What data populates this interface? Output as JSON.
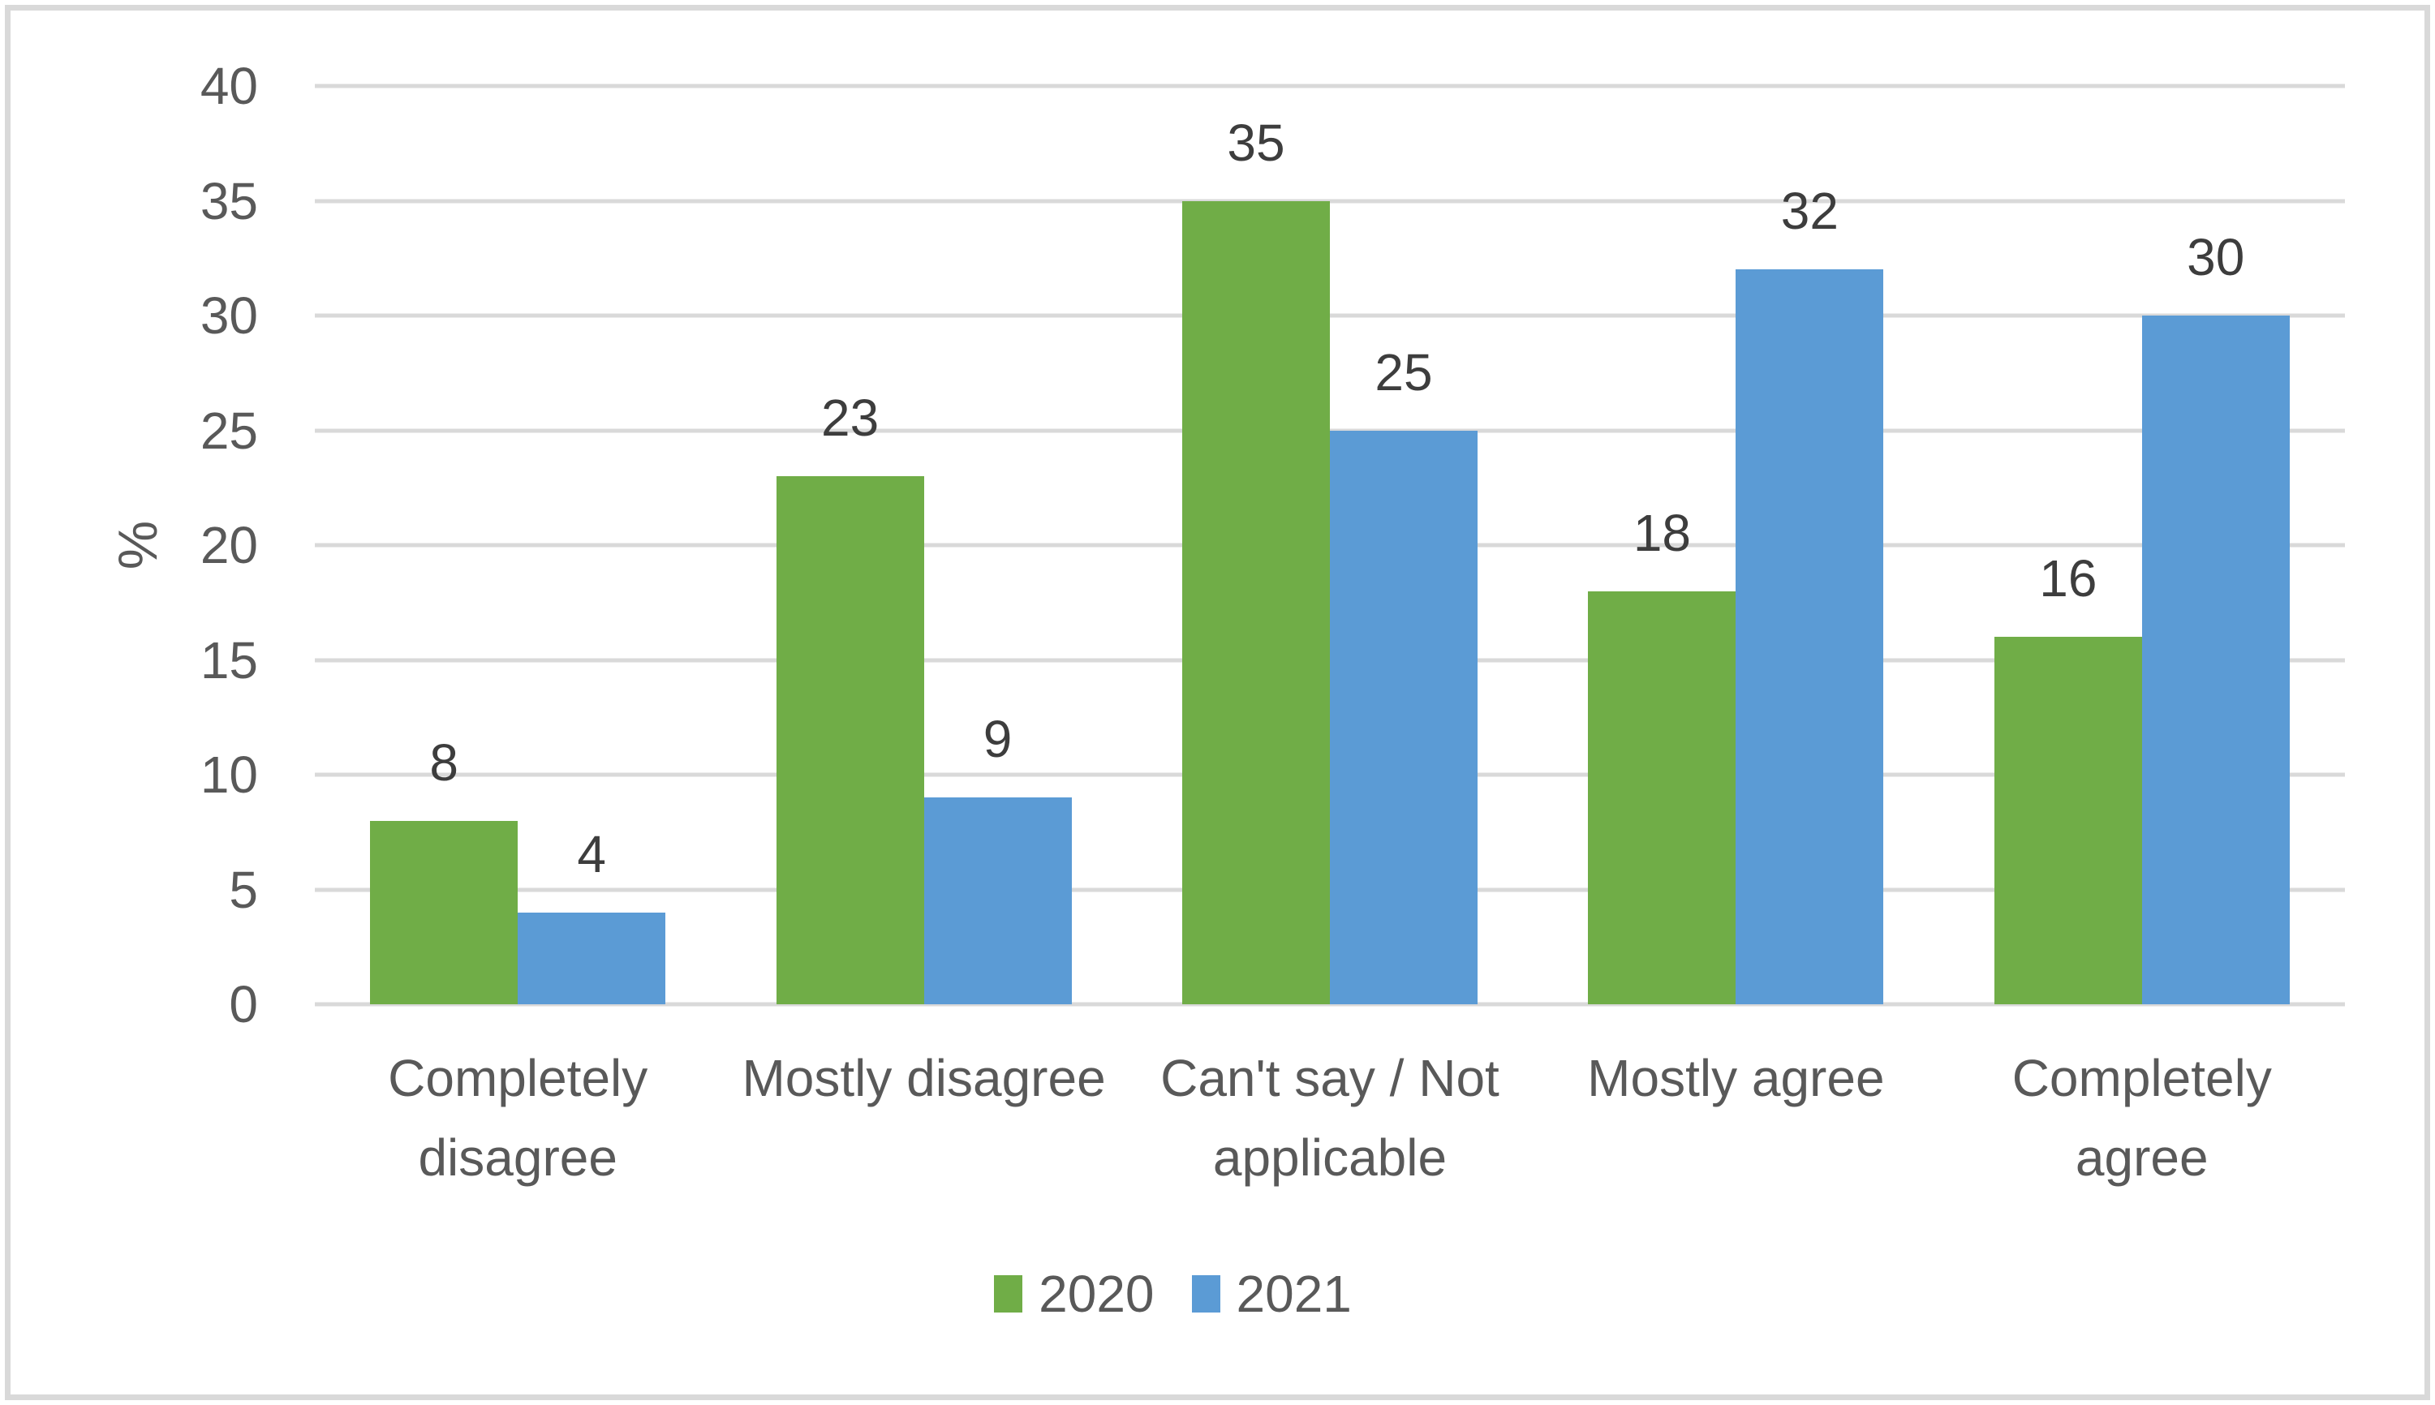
{
  "chart_data": {
    "type": "bar",
    "title": "",
    "categories": [
      "Completely disagree",
      "Mostly disagree",
      "Can't say / Not applicable",
      "Mostly agree",
      "Completely agree"
    ],
    "category_lines": [
      [
        "Completely",
        "disagree"
      ],
      [
        "Mostly disagree"
      ],
      [
        "Can't say / Not",
        "applicable"
      ],
      [
        "Mostly agree"
      ],
      [
        "Completely",
        "agree"
      ]
    ],
    "series": [
      {
        "name": "2020",
        "color": "#70AD47",
        "values": [
          8,
          23,
          35,
          18,
          16
        ]
      },
      {
        "name": "2021",
        "color": "#5B9BD5",
        "values": [
          4,
          9,
          25,
          32,
          30
        ]
      }
    ],
    "xlabel": "",
    "ylabel": "%",
    "ylim": [
      0,
      40
    ],
    "yticks": [
      0,
      5,
      10,
      15,
      20,
      25,
      30,
      35,
      40
    ],
    "grid": true,
    "data_labels": true,
    "legend_position": "bottom"
  },
  "colors": {
    "gridline": "#d9d9d9",
    "frame_border": "#d9d9d9",
    "axis_text": "#595959",
    "data_label_text": "#3d3d3d",
    "background": "#ffffff"
  }
}
